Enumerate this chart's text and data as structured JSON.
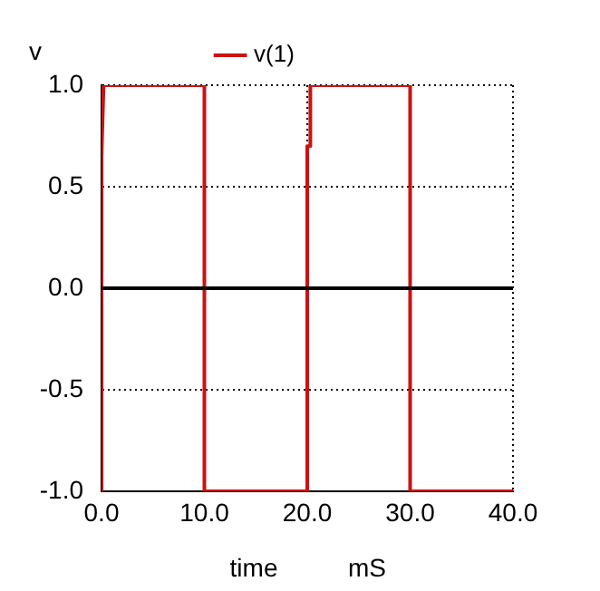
{
  "chart_data": {
    "type": "line",
    "xlabel": "time",
    "ylabel": "v",
    "annotations": [
      "mS"
    ],
    "x": [
      0,
      0,
      0.2,
      10,
      10,
      20,
      20,
      20.3,
      20.3,
      30,
      30,
      40
    ],
    "series": [
      {
        "name": "v(1)",
        "color": "#cc1111",
        "values": [
          -1,
          0.65,
          1,
          1,
          -1,
          -1,
          0.7,
          0.7,
          1,
          1,
          -1,
          -1
        ]
      }
    ],
    "xlim": [
      0,
      40
    ],
    "xticks": [
      {
        "value": 0,
        "label": "0.0"
      },
      {
        "value": 10,
        "label": "10.0"
      },
      {
        "value": 20,
        "label": "20.0"
      },
      {
        "value": 30,
        "label": "30.0"
      },
      {
        "value": 40,
        "label": "40.0"
      }
    ],
    "ylim": [
      -1,
      1
    ],
    "yticks": [
      {
        "value": -1,
        "label": "-1.0"
      },
      {
        "value": -0.5,
        "label": "-0.5"
      },
      {
        "value": 0,
        "label": "0.0"
      },
      {
        "value": 0.5,
        "label": "0.5"
      },
      {
        "value": 1,
        "label": "1.0"
      }
    ],
    "ref_lines": [
      {
        "axis": "y",
        "value": 0,
        "color": "#000000"
      }
    ],
    "grid": true,
    "legend": "top",
    "marker": "none",
    "line_style": "solid"
  }
}
